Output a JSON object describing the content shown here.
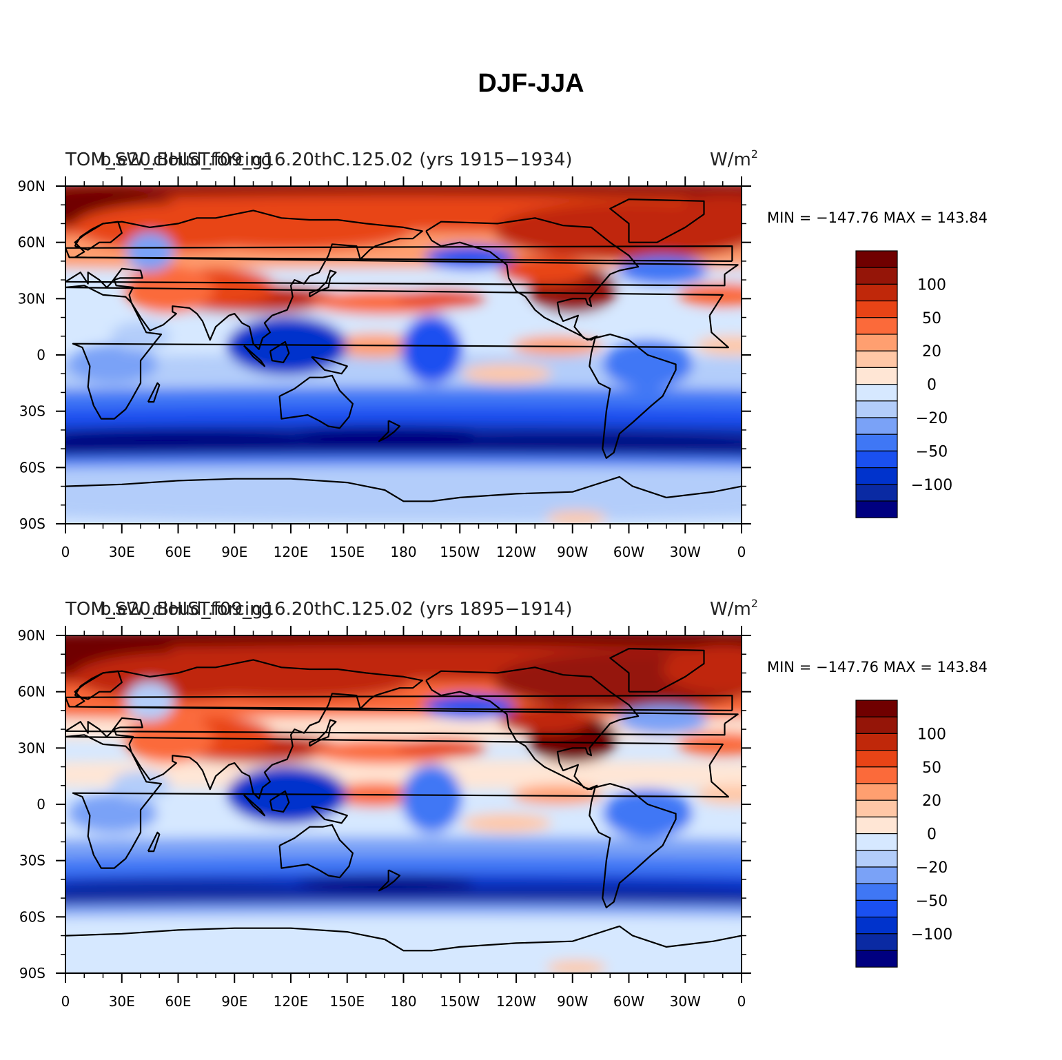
{
  "figure": {
    "title": "DJF-JJA"
  },
  "colorbar": {
    "levels": [
      -130,
      -100,
      -80,
      -50,
      -40,
      -20,
      -10,
      0,
      10,
      20,
      40,
      50,
      80,
      100,
      130
    ],
    "labels": [
      {
        "value": 100,
        "text": "100"
      },
      {
        "value": 50,
        "text": "50"
      },
      {
        "value": 20,
        "text": "20"
      },
      {
        "value": 0,
        "text": "0"
      },
      {
        "value": -20,
        "text": "−20"
      },
      {
        "value": -50,
        "text": "−50"
      },
      {
        "value": -100,
        "text": "−100"
      }
    ],
    "colors": [
      "#000080",
      "#0a2aa3",
      "#0033cc",
      "#1a50f0",
      "#3f77f5",
      "#7aa2f7",
      "#b3cdfa",
      "#d6e8ff",
      "#ffe6d5",
      "#ffc7a6",
      "#ff9f70",
      "#fb6a3a",
      "#e84416",
      "#c0280a",
      "#951508",
      "#700000"
    ]
  },
  "map": {
    "lon_ticks": [
      "0",
      "30E",
      "60E",
      "90E",
      "120E",
      "150E",
      "180",
      "150W",
      "120W",
      "90W",
      "60W",
      "30W",
      "0"
    ],
    "lat_ticks": [
      "90N",
      "60N",
      "30N",
      "0",
      "30S",
      "60S",
      "90S"
    ],
    "lon_range": [
      0,
      360
    ],
    "lat_range": [
      -90,
      90
    ]
  },
  "panels": [
    {
      "left_title": "TOM_SW_cloud_forcing",
      "center_title": "b.e20.BHIST.f09_g16.20thC.125.02 (yrs 1915−1934)",
      "units": "W/m",
      "units_exp": "2",
      "min_max": "MIN = −147.76  MAX = 143.84",
      "min": -147.76,
      "max": 143.84
    },
    {
      "left_title": "TOM_SW_cloud_forcing",
      "center_title": "b.e20.BHIST.f09_g16.20thC.125.02 (yrs 1895−1914)",
      "units": "W/m",
      "units_exp": "2",
      "min_max": "MIN = −147.76  MAX = 143.84",
      "min": -147.76,
      "max": 143.84
    }
  ]
}
